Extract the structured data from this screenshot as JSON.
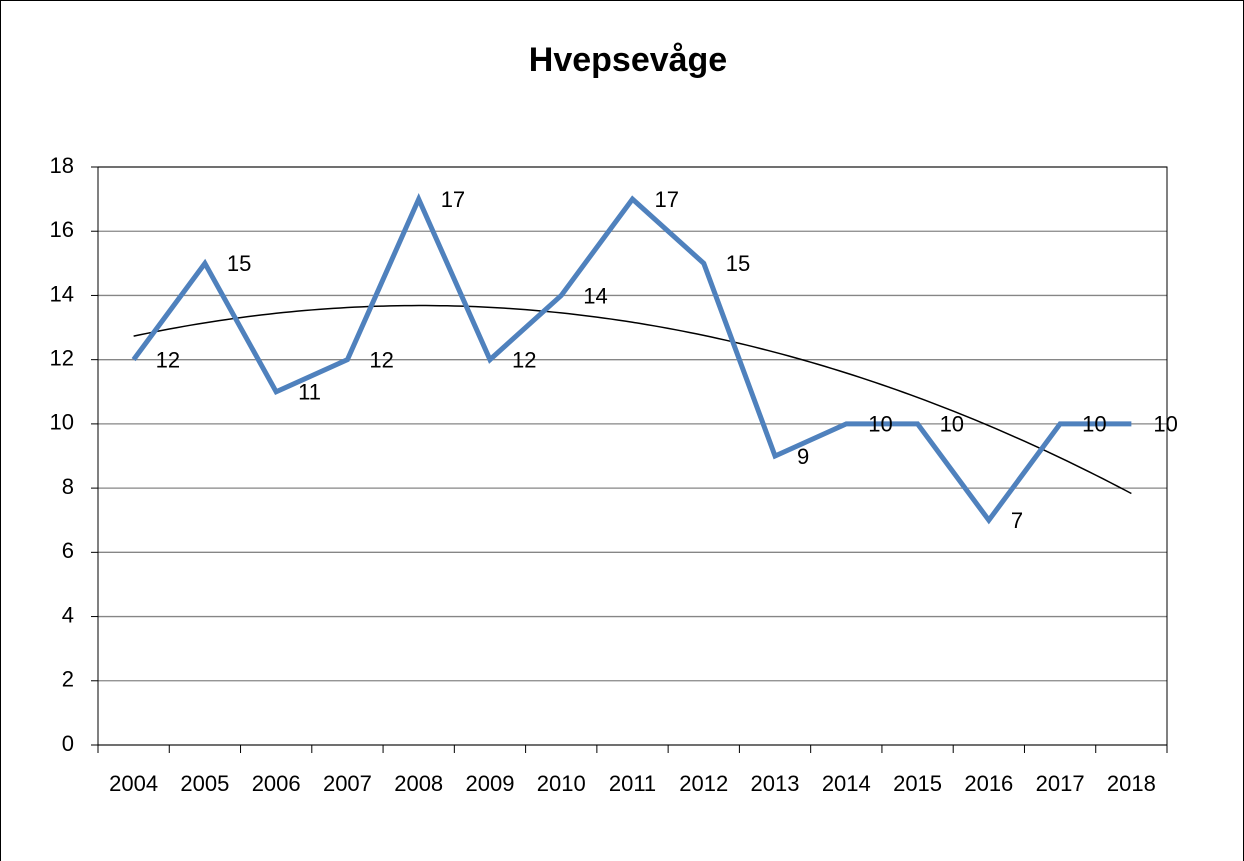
{
  "chart_data": {
    "type": "line",
    "title": "Hvepsevåge",
    "categories": [
      "2004",
      "2005",
      "2006",
      "2007",
      "2008",
      "2009",
      "2010",
      "2011",
      "2012",
      "2013",
      "2014",
      "2015",
      "2016",
      "2017",
      "2018"
    ],
    "values": [
      12,
      15,
      11,
      12,
      17,
      12,
      14,
      17,
      15,
      9,
      10,
      10,
      7,
      10,
      10
    ],
    "color": "#4f81bd",
    "ylim": [
      0,
      18
    ],
    "yticks": [
      0,
      2,
      4,
      6,
      8,
      10,
      12,
      14,
      16,
      18
    ],
    "grid": true,
    "trendline": {
      "type": "polynomial",
      "order": 2,
      "color": "#000000"
    }
  }
}
